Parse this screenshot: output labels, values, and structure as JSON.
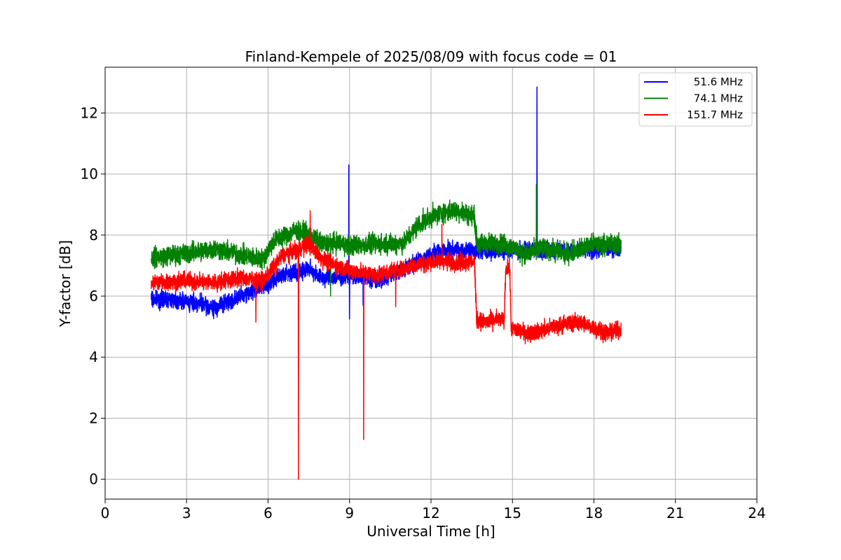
{
  "chart_data": {
    "type": "line",
    "title": "Finland-Kempele of 2025/08/09 with focus code = 01",
    "xlabel": "Universal Time [h]",
    "ylabel": "Y-factor [dB]",
    "xlim": [
      0,
      24
    ],
    "ylim": [
      -0.65,
      13.5
    ],
    "xticks": [
      "0",
      "3",
      "6",
      "9",
      "12",
      "15",
      "18",
      "21",
      "24"
    ],
    "yticks": [
      "0",
      "2",
      "4",
      "6",
      "8",
      "10",
      "12"
    ],
    "grid": true,
    "legend_position": "top-right",
    "series": [
      {
        "name": "51.6 MHz",
        "color": "#0000ff",
        "noise": 0.17,
        "points": [
          [
            1.7,
            5.9
          ],
          [
            2.5,
            5.9
          ],
          [
            3.5,
            5.75
          ],
          [
            4.0,
            5.6
          ],
          [
            4.5,
            5.8
          ],
          [
            5.0,
            6.0
          ],
          [
            5.5,
            6.2
          ],
          [
            6.0,
            6.35
          ],
          [
            6.5,
            6.7
          ],
          [
            7.0,
            6.8
          ],
          [
            7.5,
            6.9
          ],
          [
            8.0,
            6.6
          ],
          [
            8.5,
            6.6
          ],
          [
            9.0,
            6.7
          ],
          [
            9.5,
            6.6
          ],
          [
            10.0,
            6.5
          ],
          [
            10.5,
            6.7
          ],
          [
            11.0,
            6.9
          ],
          [
            11.5,
            7.1
          ],
          [
            12.0,
            7.4
          ],
          [
            12.5,
            7.5
          ],
          [
            13.0,
            7.5
          ],
          [
            13.5,
            7.5
          ],
          [
            13.7,
            7.5
          ],
          [
            14.0,
            7.5
          ],
          [
            15.0,
            7.5
          ],
          [
            16.0,
            7.5
          ],
          [
            17.0,
            7.5
          ],
          [
            18.0,
            7.5
          ],
          [
            19.0,
            7.6
          ]
        ],
        "spikes": [
          [
            8.97,
            10.3
          ],
          [
            15.9,
            12.85
          ],
          [
            9.0,
            5.25
          ],
          [
            9.5,
            5.7
          ]
        ]
      },
      {
        "name": "74.1 MHz",
        "color": "#008000",
        "noise": 0.2,
        "points": [
          [
            1.7,
            7.25
          ],
          [
            3.0,
            7.4
          ],
          [
            4.0,
            7.55
          ],
          [
            5.0,
            7.35
          ],
          [
            5.8,
            7.2
          ],
          [
            6.2,
            7.8
          ],
          [
            7.0,
            8.15
          ],
          [
            7.5,
            8.0
          ],
          [
            8.0,
            7.7
          ],
          [
            8.5,
            7.75
          ],
          [
            9.0,
            7.65
          ],
          [
            10.0,
            7.7
          ],
          [
            11.0,
            7.75
          ],
          [
            11.5,
            8.3
          ],
          [
            12.0,
            8.6
          ],
          [
            12.5,
            8.75
          ],
          [
            13.0,
            8.8
          ],
          [
            13.6,
            8.6
          ],
          [
            13.7,
            7.7
          ],
          [
            14.5,
            7.75
          ],
          [
            15.0,
            7.6
          ],
          [
            15.5,
            7.35
          ],
          [
            16.0,
            7.6
          ],
          [
            17.0,
            7.4
          ],
          [
            18.0,
            7.7
          ],
          [
            19.0,
            7.7
          ]
        ],
        "spikes": [
          [
            8.3,
            6.0
          ],
          [
            15.88,
            9.65
          ]
        ]
      },
      {
        "name": "151.7 MHz",
        "color": "#ff0000",
        "noise": 0.17,
        "points": [
          [
            1.7,
            6.45
          ],
          [
            3.0,
            6.5
          ],
          [
            4.0,
            6.45
          ],
          [
            5.0,
            6.6
          ],
          [
            5.8,
            6.5
          ],
          [
            6.0,
            6.7
          ],
          [
            6.5,
            7.3
          ],
          [
            7.0,
            7.5
          ],
          [
            7.5,
            7.7
          ],
          [
            8.0,
            7.2
          ],
          [
            8.5,
            7.0
          ],
          [
            9.0,
            6.85
          ],
          [
            10.0,
            6.7
          ],
          [
            10.5,
            6.8
          ],
          [
            11.0,
            6.9
          ],
          [
            11.5,
            7.05
          ],
          [
            12.0,
            7.1
          ],
          [
            12.5,
            7.15
          ],
          [
            13.0,
            7.1
          ],
          [
            13.6,
            7.15
          ],
          [
            13.68,
            5.2
          ],
          [
            14.0,
            5.15
          ],
          [
            14.5,
            5.25
          ],
          [
            14.7,
            5.2
          ],
          [
            14.75,
            6.9
          ],
          [
            14.9,
            6.9
          ],
          [
            14.95,
            4.95
          ],
          [
            15.5,
            4.8
          ],
          [
            16.0,
            4.85
          ],
          [
            16.5,
            5.0
          ],
          [
            17.0,
            5.1
          ],
          [
            17.5,
            5.15
          ],
          [
            18.0,
            4.95
          ],
          [
            18.5,
            4.8
          ],
          [
            19.0,
            4.9
          ]
        ],
        "spikes": [
          [
            5.55,
            5.15
          ],
          [
            7.12,
            0.0
          ],
          [
            7.55,
            8.8
          ],
          [
            9.52,
            1.3
          ],
          [
            10.7,
            5.65
          ],
          [
            12.4,
            8.35
          ]
        ]
      }
    ]
  }
}
